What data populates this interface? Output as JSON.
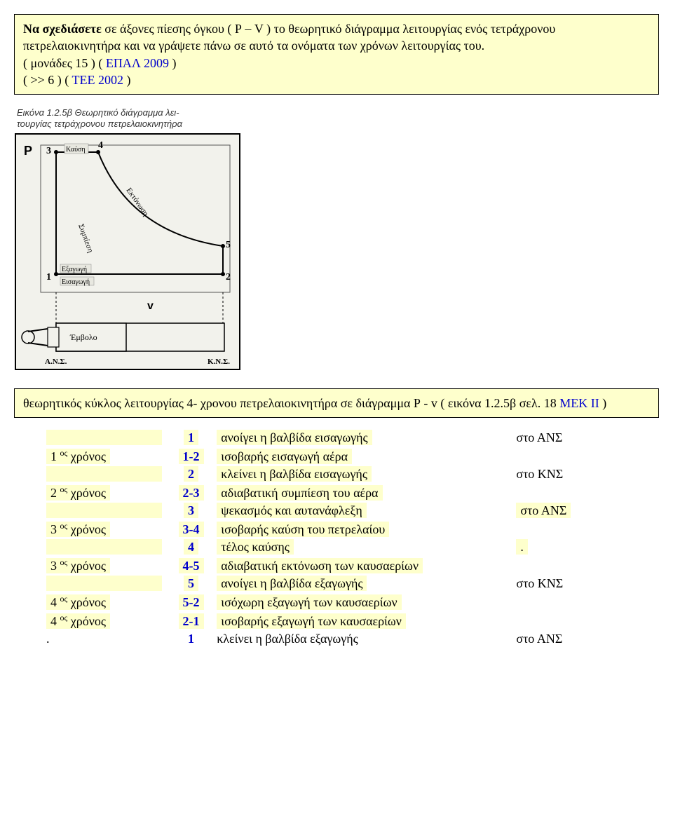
{
  "question_box": {
    "lead_bold": "Να σχεδιάσετε",
    "rest": " σε άξονες πίεσης όγκου ( Ρ – V ) το θεωρητικό διάγραμμα λειτουργίας ενός τετράχρονου πετρελαιοκινητήρα και να γράψετε πάνω σε αυτό τα ονόματα των χρόνων λειτουργίας του.",
    "source1_prefix": "( μονάδες 15 )   ( ",
    "source1_blue": "ΕΠΑΛ  2009",
    "source1_suffix": " )",
    "source2_prefix": "(     >>        6 )   ( ",
    "source2_blue": "ΤΕΕ    2002",
    "source2_suffix": " )"
  },
  "diagram": {
    "caption_line1": "Εικόνα 1.2.5β Θεωρητικό διάγραμμα λει-",
    "caption_line2": "τουργίας τετράχρονου πετρελαιοκινητήρα",
    "y_axis": "P",
    "x_axis": "v",
    "points": [
      "1",
      "2",
      "3",
      "4",
      "5"
    ],
    "label_kausi": "Καύση",
    "label_ektonosi": "Εκτόνωση",
    "label_sympiesi": "Συμπίεση",
    "label_exagogi": "Εξαγωγή",
    "label_eisagogi_small": "Εισαγωγή",
    "label_embolo": "Έμβολο",
    "label_ans": "Α.Ν.Σ.",
    "label_kns": "Κ.Ν.Σ."
  },
  "answer_box": {
    "text_pre": "   θεωρητικός  κύκλος λειτουργίας  4- χρονου  πετρελαιοκινητήρα σε διάγραμμα  Ρ - v     ( εικόνα 1.2.5β  σελ. 18 ",
    "blue": "ΜΕΚ  ΙΙ",
    "text_post": "  )"
  },
  "cycle": {
    "rows": [
      {
        "chronos": "",
        "step": "1",
        "desc": "ανοίγει  η  βαλβίδα  εισαγωγής",
        "where": "στο  ΑΝΣ",
        "where_hl": false
      },
      {
        "chronos": "1 ος  χρόνος",
        "step": "1-2",
        "desc": "ισοβαρής  εισαγωγή  αέρα",
        "where": "",
        "where_hl": false
      },
      {
        "chronos": "",
        "step": "2",
        "desc": "κλείνει  η  βαλβίδα  εισαγωγής",
        "where": "στο  ΚΝΣ",
        "where_hl": false
      },
      {
        "chronos": "2 ος  χρόνος",
        "step": "2-3",
        "desc": "αδιαβατική   συμπίεση  του  αέρα",
        "where": "",
        "where_hl": false
      },
      {
        "chronos": "",
        "step": "3",
        "desc": "ψεκασμός  και  αυτανάφλεξη",
        "where": "στο  ΑΝΣ",
        "where_hl": true
      },
      {
        "chronos": "3 ος  χρόνος",
        "step": "3-4",
        "desc": "ισοβαρής  καύση του  πετρελαίου",
        "where": "",
        "where_hl": false
      },
      {
        "chronos": "",
        "step": "4",
        "desc": "τέλος  καύσης",
        "where": ".",
        "where_hl": true
      },
      {
        "chronos": "3 ος  χρόνος",
        "step": "4-5",
        "desc": "αδιαβατική  εκτόνωση  των  καυσαερίων",
        "where": "",
        "where_hl": false
      },
      {
        "chronos": "",
        "step": "5",
        "desc": "ανοίγει  η  βαλβίδα  εξαγωγής",
        "where": "στο  ΚΝΣ",
        "where_hl": false
      },
      {
        "chronos": "4 ος  χρόνος",
        "step": "5-2",
        "desc": "ισόχωρη   εξαγωγή  των  καυσαερίων",
        "where": "",
        "where_hl": false
      },
      {
        "chronos": "4 ος  χρόνος",
        "step": "2-1",
        "desc": "ισοβαρής   εξαγωγή  των  καυσαερίων",
        "where": "",
        "where_hl": false
      }
    ],
    "footer_dot": ".",
    "footer_step": "1",
    "footer_desc": "κλείνει  η  βαλβίδα  εξαγωγής",
    "footer_where": "στο  ΑΝΣ"
  }
}
